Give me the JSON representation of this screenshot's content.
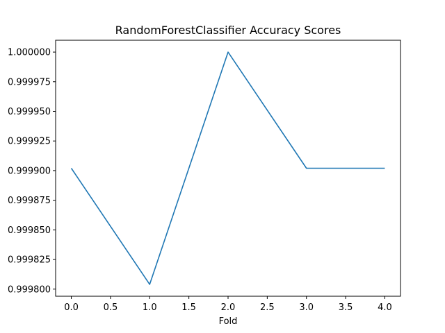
{
  "chart_data": {
    "type": "line",
    "title": "RandomForestClassifier Accuracy Scores",
    "xlabel": "Fold",
    "ylabel": "",
    "x": [
      0,
      1,
      2,
      3,
      4
    ],
    "series": [
      {
        "values": [
          0.999902,
          0.999804,
          1.0,
          0.999902,
          0.999902
        ],
        "color": "#1f77b4"
      }
    ],
    "xlim": [
      -0.2,
      4.2
    ],
    "ylim": [
      0.999794,
      1.00001
    ],
    "xticks": [
      0.0,
      0.5,
      1.0,
      1.5,
      2.0,
      2.5,
      3.0,
      3.5,
      4.0
    ],
    "xtick_labels": [
      "0.0",
      "0.5",
      "1.0",
      "1.5",
      "2.0",
      "2.5",
      "3.0",
      "3.5",
      "4.0"
    ],
    "yticks": [
      0.9998,
      0.999825,
      0.99985,
      0.999875,
      0.9999,
      0.999925,
      0.99995,
      0.999975,
      1.0
    ],
    "ytick_labels": [
      "0.999800",
      "0.999825",
      "0.999850",
      "0.999875",
      "0.999900",
      "0.999925",
      "0.999950",
      "0.999975",
      "1.000000"
    ],
    "grid": false,
    "legend": "none"
  }
}
